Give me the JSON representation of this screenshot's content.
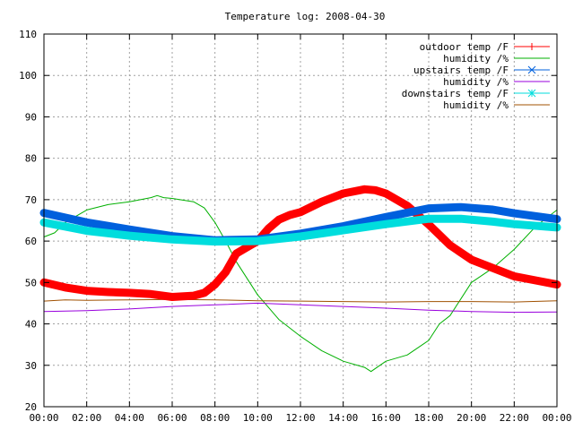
{
  "chart_data": {
    "type": "line",
    "title": "Temperature log: 2008-04-30",
    "xlabel": "",
    "ylabel": "",
    "ylim": [
      20,
      110
    ],
    "xlim": [
      0,
      24
    ],
    "yticks": [
      "20",
      "30",
      "40",
      "50",
      "60",
      "70",
      "80",
      "90",
      "100",
      "110"
    ],
    "xticks": [
      "00:00",
      "02:00",
      "04:00",
      "06:00",
      "08:00",
      "10:00",
      "12:00",
      "14:00",
      "16:00",
      "18:00",
      "20:00",
      "22:00",
      "00:00"
    ],
    "grid": true,
    "legend_position": "top-right",
    "series": [
      {
        "name": "outdoor temp /F",
        "color": "#ff0000",
        "marker": "plus",
        "thick": true,
        "x": [
          0,
          1,
          2,
          3,
          4,
          5,
          6,
          7,
          7.5,
          8,
          8.5,
          9,
          9.5,
          10,
          10.5,
          11,
          11.5,
          12,
          13,
          14,
          15,
          15.5,
          16,
          17,
          18,
          19,
          20,
          21,
          22,
          23,
          24
        ],
        "y": [
          50,
          48.8,
          48,
          47.7,
          47.5,
          47.2,
          46.5,
          46.8,
          47.5,
          49.5,
          52.5,
          57,
          58.5,
          60,
          63,
          65.2,
          66.3,
          67,
          69.5,
          71.5,
          72.5,
          72.3,
          71.5,
          68.5,
          64,
          59,
          55.5,
          53.5,
          51.5,
          50.5,
          49.5
        ]
      },
      {
        "name": "humidity /%",
        "color": "#00b000",
        "marker": "none",
        "thick": false,
        "x": [
          0,
          0.5,
          1,
          2,
          3,
          4,
          5,
          5.3,
          5.6,
          6,
          7,
          7.5,
          8,
          8.5,
          9,
          9.5,
          10,
          10.5,
          11,
          12,
          13,
          14,
          15,
          15.3,
          16,
          17,
          18,
          18.5,
          19,
          20,
          21,
          22,
          23,
          24
        ],
        "y": [
          61,
          62,
          64.5,
          67.5,
          68.8,
          69.5,
          70.5,
          71,
          70.5,
          70.3,
          69.5,
          68,
          64.5,
          60,
          55,
          51,
          47,
          44,
          41,
          37,
          33.5,
          31,
          29.5,
          28.5,
          31,
          32.5,
          36,
          40,
          42,
          50,
          53.5,
          58,
          63.5,
          67.5
        ]
      },
      {
        "name": "upstairs temp /F",
        "color": "#0060dd",
        "marker": "cross",
        "thick": true,
        "x": [
          0,
          2,
          4,
          6,
          8,
          10,
          12,
          14,
          16,
          18,
          19.5,
          21,
          22,
          24
        ],
        "y": [
          66.8,
          64.5,
          62.8,
          61.2,
          60.2,
          60.4,
          61.8,
          63.6,
          65.8,
          67.9,
          68.2,
          67.6,
          66.7,
          65.3
        ]
      },
      {
        "name": "humidity /%",
        "color": "#9900dd",
        "marker": "none",
        "thick": false,
        "x": [
          0,
          2,
          4,
          6,
          8,
          10,
          12,
          14,
          16,
          18,
          20,
          22,
          24
        ],
        "y": [
          43,
          43.2,
          43.6,
          44.2,
          44.6,
          45,
          44.6,
          44.2,
          43.8,
          43.3,
          43,
          42.8,
          42.9
        ]
      },
      {
        "name": "downstairs temp /F",
        "color": "#00dddd",
        "marker": "star",
        "thick": true,
        "x": [
          0,
          2,
          4,
          6,
          8,
          10,
          12,
          14,
          16,
          18,
          19.5,
          21,
          22,
          24
        ],
        "y": [
          64.5,
          62.5,
          61.3,
          60.4,
          59.9,
          60,
          61.1,
          62.6,
          64.1,
          65.4,
          65.4,
          64.7,
          64.1,
          63.3
        ]
      },
      {
        "name": "humidity /%",
        "color": "#a05000",
        "marker": "none",
        "thick": false,
        "x": [
          0,
          1,
          2,
          4,
          6,
          8,
          10,
          12,
          14,
          16,
          18,
          20,
          22,
          24
        ],
        "y": [
          45.5,
          45.8,
          45.7,
          45.8,
          45.9,
          45.8,
          45.6,
          45.5,
          45.4,
          45.3,
          45.4,
          45.4,
          45.3,
          45.6
        ]
      }
    ]
  }
}
